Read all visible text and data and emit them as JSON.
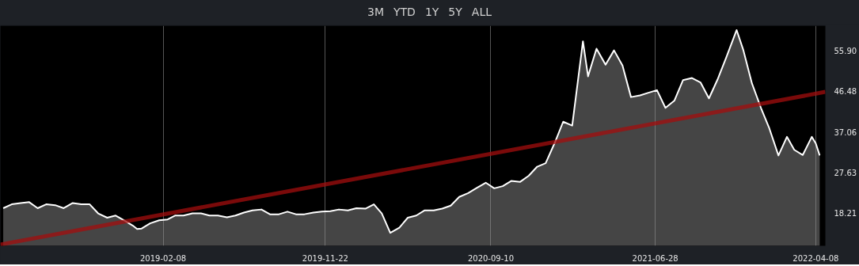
{
  "chart_data": {
    "type": "area",
    "annotations": [
      "3M",
      "YTD",
      "1Y",
      "5Y",
      "ALL"
    ],
    "xlim": [
      "2018-04-26",
      "2022-04-25"
    ],
    "xticks": [
      "2019-02-08",
      "2019-11-22",
      "2020-09-10",
      "2021-06-28",
      "2022-04-08"
    ],
    "ylim": [
      10.7,
      61.6
    ],
    "yticks": [
      {
        "value": 18.21,
        "label": "18.21"
      },
      {
        "value": 27.63,
        "label": "27.63"
      },
      {
        "value": 37.06,
        "label": "37.06"
      },
      {
        "value": 46.48,
        "label": "46.48"
      },
      {
        "value": 55.9,
        "label": "55.90"
      }
    ],
    "grid": "x",
    "series": [
      {
        "color": "#ffffff",
        "x": [
          "2018-05-01",
          "2018-05-16",
          "2018-06-01",
          "2018-06-16",
          "2018-07-01",
          "2018-07-16",
          "2018-08-01",
          "2018-08-16",
          "2018-09-01",
          "2018-09-16",
          "2018-10-01",
          "2018-10-16",
          "2018-11-01",
          "2018-11-16",
          "2018-12-01",
          "2018-12-16",
          "2018-12-24",
          "2019-01-01",
          "2019-01-16",
          "2019-02-01",
          "2019-02-16",
          "2019-03-01",
          "2019-03-16",
          "2019-04-01",
          "2019-04-16",
          "2019-05-01",
          "2019-05-16",
          "2019-06-01",
          "2019-06-16",
          "2019-07-01",
          "2019-07-16",
          "2019-08-01",
          "2019-08-16",
          "2019-09-01",
          "2019-09-16",
          "2019-10-01",
          "2019-10-16",
          "2019-11-01",
          "2019-11-16",
          "2019-12-01",
          "2019-12-16",
          "2020-01-01",
          "2020-01-16",
          "2020-02-01",
          "2020-02-16",
          "2020-03-01",
          "2020-03-16",
          "2020-04-01",
          "2020-04-16",
          "2020-05-01",
          "2020-05-16",
          "2020-06-01",
          "2020-06-16",
          "2020-07-01",
          "2020-07-16",
          "2020-08-01",
          "2020-08-16",
          "2020-09-01",
          "2020-09-16",
          "2020-10-01",
          "2020-10-16",
          "2020-11-01",
          "2020-11-16",
          "2020-12-01",
          "2020-12-16",
          "2021-01-01",
          "2021-01-16",
          "2021-02-01",
          "2021-02-20",
          "2021-03-01",
          "2021-03-16",
          "2021-04-01",
          "2021-04-16",
          "2021-05-01",
          "2021-05-16",
          "2021-06-01",
          "2021-06-16",
          "2021-07-01",
          "2021-07-16",
          "2021-08-01",
          "2021-08-16",
          "2021-09-01",
          "2021-09-16",
          "2021-10-01",
          "2021-10-16",
          "2021-11-01",
          "2021-11-19",
          "2021-12-01",
          "2021-12-16",
          "2022-01-01",
          "2022-01-16",
          "2022-02-01",
          "2022-02-16",
          "2022-03-01",
          "2022-03-16",
          "2022-04-01",
          "2022-04-08",
          "2022-04-15"
        ],
        "values": [
          19.4,
          20.3,
          20.6,
          20.8,
          19.4,
          20.3,
          20.1,
          19.4,
          20.6,
          20.3,
          20.3,
          18.2,
          17.2,
          17.7,
          16.6,
          15.4,
          14.6,
          14.7,
          15.9,
          16.6,
          16.8,
          17.7,
          17.7,
          18.2,
          18.2,
          17.7,
          17.7,
          17.3,
          17.7,
          18.4,
          18.9,
          19.1,
          18.0,
          18.0,
          18.6,
          18.0,
          18.0,
          18.4,
          18.6,
          18.7,
          19.1,
          18.9,
          19.4,
          19.3,
          20.3,
          18.2,
          13.7,
          14.9,
          17.2,
          17.7,
          18.9,
          18.9,
          19.3,
          20.0,
          22.0,
          22.9,
          24.1,
          25.3,
          24.0,
          24.5,
          25.7,
          25.5,
          26.9,
          29.0,
          29.8,
          34.5,
          39.4,
          38.5,
          58.0,
          49.9,
          56.3,
          52.6,
          55.9,
          52.4,
          45.1,
          45.5,
          46.1,
          46.7,
          42.6,
          44.3,
          49.0,
          49.5,
          48.5,
          44.8,
          49.1,
          54.4,
          60.6,
          55.9,
          48.3,
          42.6,
          37.8,
          31.6,
          35.9,
          32.9,
          31.7,
          35.9,
          34.4,
          31.6
        ]
      },
      {
        "type": "line",
        "color": "#a30d0d",
        "x": [
          "2018-04-26",
          "2022-04-25"
        ],
        "values": [
          11.0,
          46.3
        ]
      }
    ]
  }
}
